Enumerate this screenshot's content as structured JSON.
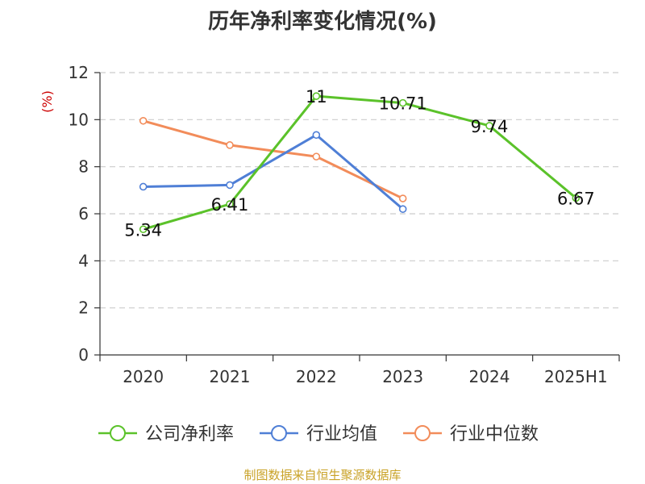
{
  "title": "历年净利率变化情况(%)",
  "source": "制图数据来自恒生聚源数据库",
  "colors": {
    "company": "#5bc22a",
    "industry_avg": "#4f7fd6",
    "industry_median": "#f28c5a",
    "unit": "#cc0000",
    "grid": "#cccccc",
    "axis": "#333333"
  },
  "chart_data": {
    "type": "line",
    "title": "历年净利率变化情况(%)",
    "ylabel": "(%)",
    "xlabel": "",
    "categories": [
      "2020",
      "2021",
      "2022",
      "2023",
      "2024",
      "2025H1"
    ],
    "y_ticks": [
      "0",
      "2",
      "4",
      "6",
      "8",
      "10",
      "12"
    ],
    "ylim": [
      0,
      12
    ],
    "grid": true,
    "legend_position": "bottom",
    "series": [
      {
        "name": "公司净利率",
        "color": "#5bc22a",
        "values": [
          5.34,
          6.41,
          11,
          10.71,
          9.74,
          6.67
        ],
        "labels": [
          "5.34",
          "6.41",
          "11",
          "10.71",
          "9.74",
          "6.67"
        ],
        "show_labels": true
      },
      {
        "name": "行业均值",
        "color": "#4f7fd6",
        "values": [
          7.15,
          7.22,
          9.35,
          6.2,
          null,
          null
        ],
        "show_labels": false
      },
      {
        "name": "行业中位数",
        "color": "#f28c5a",
        "values": [
          9.95,
          8.92,
          8.43,
          6.65,
          null,
          null
        ],
        "show_labels": false
      }
    ]
  }
}
